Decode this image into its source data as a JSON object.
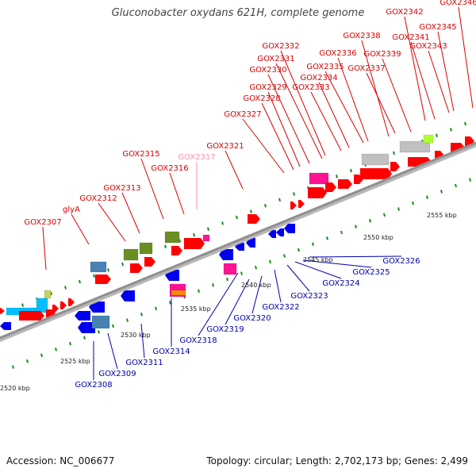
{
  "title": "Gluconobacter oxydans 621H, complete genome",
  "accession": "Accession: NC_006677",
  "topology": "Topology: circular; Length: 2,702,173 bp; Genes: 2,499",
  "colors": {
    "forward_label": "#dd0000",
    "reverse_label": "#0000aa",
    "pseudo_label": "#ff8fb4",
    "backbone": "#8f8f8f",
    "tick": "#1e8a1e",
    "gene_red": "#ff0000",
    "gene_blue": "#0000ee",
    "gene_olive": "#6b8e23",
    "gene_steel": "#4682b4",
    "gene_magenta": "#ff1493",
    "gene_grey": "#c0c0c0",
    "gene_cyan": "#00bfff",
    "gene_orange": "#ff8c00"
  },
  "kbp_labels": [
    "2520 kbp",
    "2525 kbp",
    "2530 kbp",
    "2535 kbp",
    "2540 kbp",
    "2545 kbp",
    "2550 kbp",
    "2555 kbp"
  ],
  "forward_genes": [
    "GOX2307",
    "glyA",
    "GOX2312",
    "GOX2313",
    "GOX2315",
    "GOX2316",
    "GOX2317",
    "GOX2321",
    "GOX2327",
    "GOX2328",
    "GOX2329",
    "GOX2330",
    "GOX2331",
    "GOX2332",
    "GOX2333",
    "GOX2334",
    "GOX2335",
    "GOX2336",
    "GOX2337",
    "GOX2338",
    "GOX2339",
    "GOX2341",
    "GOX2342",
    "GOX2343",
    "GOX2345",
    "GOX2346"
  ],
  "reverse_genes": [
    "GOX2308",
    "GOX2309",
    "GOX2311",
    "GOX2314",
    "GOX2318",
    "GOX2319",
    "GOX2320",
    "GOX2322",
    "GOX2323",
    "GOX2324",
    "GOX2325",
    "GOX2326"
  ]
}
